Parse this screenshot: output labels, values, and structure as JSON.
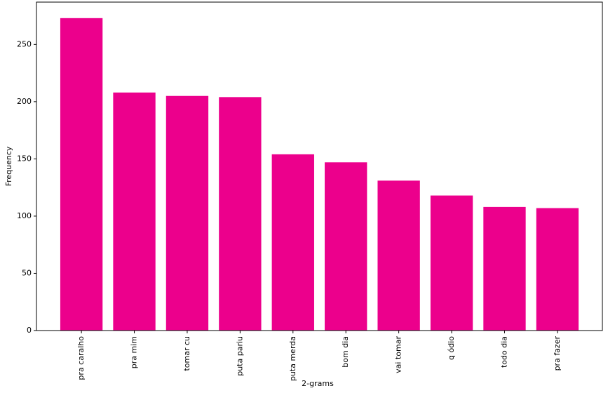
{
  "chart_data": {
    "type": "bar",
    "x_label": "2-grams",
    "y_label": "Frequency",
    "categories": [
      "pra caralho",
      "pra mim",
      "tomar cu",
      "puta pariu",
      "puta merda",
      "bom dia",
      "vai tomar",
      "q ódio",
      "todo dia",
      "pra fazer"
    ],
    "values": [
      273,
      208,
      205,
      204,
      154,
      147,
      131,
      118,
      108,
      107
    ],
    "color": "#ec008c",
    "ylim": [
      0,
      287
    ],
    "yticks": [
      0,
      50,
      100,
      150,
      200,
      250
    ],
    "grid": false
  }
}
